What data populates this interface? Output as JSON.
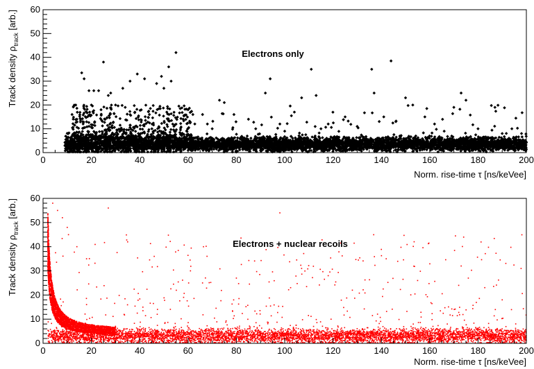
{
  "chart_data": [
    {
      "type": "scatter",
      "title": "Electrons only",
      "xlabel": "Norm. rise-time τ [ns/keVee]",
      "ylabel_main": "Track density ρ",
      "ylabel_sub": "track",
      "ylabel_unit": " [arb.]",
      "xlim": [
        0,
        200
      ],
      "ylim": [
        0,
        60
      ],
      "xticks": [
        0,
        20,
        40,
        60,
        80,
        100,
        120,
        140,
        160,
        180,
        200
      ],
      "yticks": [
        0,
        10,
        20,
        30,
        40,
        50,
        60
      ],
      "marker_color": "#000000",
      "grid": false,
      "band": {
        "x_start": 9,
        "x_end": 200,
        "y_center": 3.5,
        "y_spread": 2.0
      },
      "outliers": [
        [
          16,
          33.5
        ],
        [
          17,
          31
        ],
        [
          19,
          26
        ],
        [
          21,
          26
        ],
        [
          23,
          26
        ],
        [
          25,
          38
        ],
        [
          27,
          24
        ],
        [
          28,
          25
        ],
        [
          33,
          27
        ],
        [
          36,
          30
        ],
        [
          39,
          33
        ],
        [
          42,
          31
        ],
        [
          47,
          29
        ],
        [
          49,
          32
        ],
        [
          50,
          27
        ],
        [
          52,
          36
        ],
        [
          53,
          30
        ],
        [
          55,
          42
        ],
        [
          60,
          18
        ],
        [
          62,
          16
        ],
        [
          66,
          16
        ],
        [
          73,
          22
        ],
        [
          75,
          21
        ],
        [
          79,
          16
        ],
        [
          85,
          14
        ],
        [
          92,
          25
        ],
        [
          94,
          31
        ],
        [
          98,
          12
        ],
        [
          104,
          17
        ],
        [
          107,
          23
        ],
        [
          111,
          35
        ],
        [
          113,
          24
        ],
        [
          118,
          12
        ],
        [
          125,
          15
        ],
        [
          136,
          35
        ],
        [
          137,
          25
        ],
        [
          141,
          15
        ],
        [
          144,
          38.5
        ],
        [
          150,
          23
        ],
        [
          153,
          20
        ],
        [
          158,
          15
        ],
        [
          162,
          12
        ],
        [
          170,
          19
        ],
        [
          173,
          25
        ],
        [
          175,
          22
        ],
        [
          180,
          10
        ],
        [
          187,
          19
        ],
        [
          194,
          10
        ],
        [
          198,
          8
        ],
        [
          12,
          16
        ],
        [
          14,
          14
        ],
        [
          20,
          20
        ],
        [
          24,
          18
        ],
        [
          30,
          20
        ],
        [
          34,
          19
        ],
        [
          38,
          17
        ],
        [
          44,
          16
        ],
        [
          58,
          14
        ],
        [
          68,
          12
        ],
        [
          70,
          10
        ],
        [
          88,
          10
        ],
        [
          100,
          9
        ],
        [
          115,
          10
        ],
        [
          130,
          11
        ],
        [
          146,
          13
        ],
        [
          166,
          9
        ],
        [
          190,
          8
        ]
      ]
    },
    {
      "type": "scatter",
      "title": "Electrons + nuclear recoils",
      "xlabel": "Norm. rise-time τ [ns/keVee]",
      "ylabel_main": "Track density ρ",
      "ylabel_sub": "track",
      "ylabel_unit": " [arb.]",
      "xlim": [
        0,
        200
      ],
      "ylim": [
        0,
        60
      ],
      "xticks": [
        0,
        20,
        40,
        60,
        80,
        100,
        120,
        140,
        160,
        180,
        200
      ],
      "yticks": [
        0,
        10,
        20,
        30,
        40,
        50,
        60
      ],
      "marker_color": "#ff0000",
      "grid": false,
      "band": {
        "x_start": 2,
        "x_end": 200,
        "y_center": 3.0,
        "y_spread": 2.2
      },
      "recoil_curve": {
        "x_min": 2,
        "x_max": 30,
        "peak_y": 60
      },
      "outliers": [
        [
          4,
          58
        ],
        [
          6,
          55
        ],
        [
          8,
          52
        ],
        [
          10,
          48
        ],
        [
          14,
          40
        ],
        [
          18,
          35
        ],
        [
          27,
          56
        ],
        [
          35,
          42
        ],
        [
          46,
          36
        ],
        [
          61,
          30
        ],
        [
          80,
          27
        ],
        [
          98,
          54
        ],
        [
          107,
          31
        ],
        [
          118,
          28
        ],
        [
          142,
          35
        ],
        [
          155,
          26
        ],
        [
          172,
          24
        ],
        [
          190,
          18
        ],
        [
          128,
          22
        ],
        [
          66,
          25
        ]
      ]
    }
  ]
}
